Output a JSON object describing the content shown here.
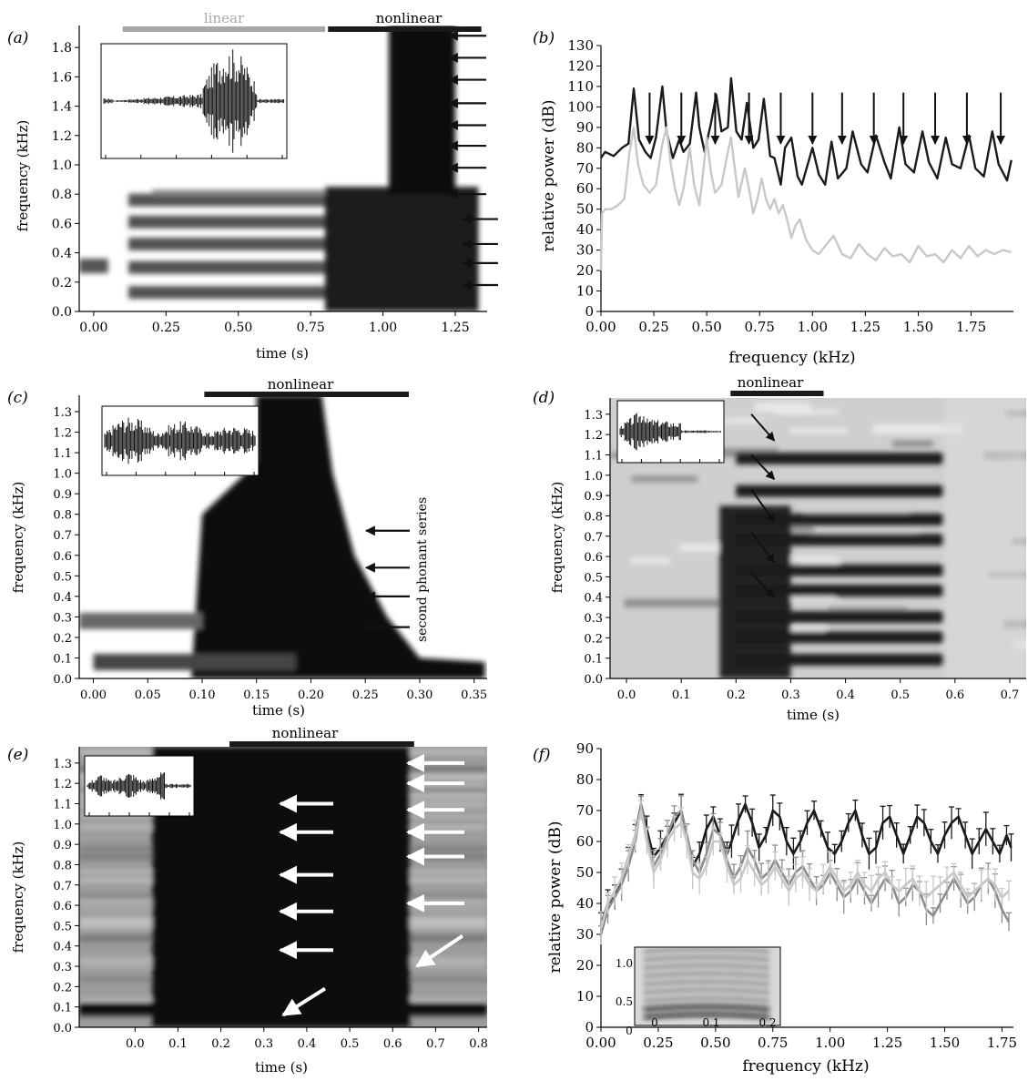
{
  "panels": {
    "a": {
      "letter": "(a)",
      "xlabel": "time (s)",
      "ylabel": "frequency (kHz)",
      "bars": [
        {
          "label": "linear",
          "color": "#a8a8a8"
        },
        {
          "label": "nonlinear",
          "color": "#1a1a1a"
        }
      ]
    },
    "b": {
      "letter": "(b)",
      "xlabel": "frequency (kHz)",
      "ylabel": "relative power (dB)"
    },
    "c": {
      "letter": "(c)",
      "xlabel": "time (s)",
      "ylabel": "frequency (kHz)",
      "bars": [
        {
          "label": "nonlinear",
          "color": "#1a1a1a"
        }
      ],
      "annotation": "second phonant series"
    },
    "d": {
      "letter": "(d)",
      "xlabel": "time (s)",
      "ylabel": "frequency (kHz)",
      "bars": [
        {
          "label": "nonlinear",
          "color": "#1a1a1a"
        }
      ]
    },
    "e": {
      "letter": "(e)",
      "xlabel": "time (s)",
      "ylabel": "frequency (kHz)",
      "bars": [
        {
          "label": "nonlinear",
          "color": "#1a1a1a"
        }
      ]
    },
    "f": {
      "letter": "(f)",
      "xlabel": "frequency (kHz)",
      "ylabel": "relative power (dB)"
    }
  },
  "chart_data": [
    {
      "panel": "a",
      "type": "heatmap",
      "xlabel": "time (s)",
      "ylabel": "frequency (kHz)",
      "xticks": [
        "0.00",
        "0.25",
        "0.50",
        "0.75",
        "1.00",
        "1.25"
      ],
      "xlim": [
        -0.05,
        1.36
      ],
      "yticks": [
        "0.0",
        "0.2",
        "0.4",
        "0.6",
        "0.8",
        "1.0",
        "1.2",
        "1.4",
        "1.6",
        "1.8"
      ],
      "ylim": [
        0,
        1.95
      ],
      "segments": [
        {
          "label": "linear",
          "start": 0.1,
          "end": 0.8
        },
        {
          "label": "nonlinear",
          "start": 0.81,
          "end": 1.34
        }
      ],
      "harmonics_linear": [
        0.13,
        0.3,
        0.46,
        0.61,
        0.76
      ],
      "arrows_y": [
        1.88,
        1.73,
        1.58,
        1.42,
        1.27,
        1.13,
        0.98,
        0.8,
        0.63,
        0.46,
        0.33,
        0.18
      ],
      "inset": {
        "type": "waveform"
      }
    },
    {
      "panel": "b",
      "type": "line",
      "xlabel": "frequency (kHz)",
      "ylabel": "relative power (dB)",
      "xticks": [
        "0.00",
        "0.25",
        "0.50",
        "0.75",
        "1.00",
        "1.25",
        "1.50",
        "1.75"
      ],
      "xlim": [
        0,
        1.95
      ],
      "yticks": [
        "0",
        "10",
        "20",
        "30",
        "40",
        "50",
        "60",
        "70",
        "80",
        "90",
        "100",
        "110",
        "120",
        "130"
      ],
      "ylim": [
        0,
        130
      ],
      "series": [
        {
          "color": "#1a1a1a",
          "x": [
            0,
            0.02,
            0.06,
            0.1,
            0.13,
            0.155,
            0.18,
            0.21,
            0.235,
            0.26,
            0.29,
            0.31,
            0.34,
            0.37,
            0.39,
            0.42,
            0.45,
            0.465,
            0.49,
            0.52,
            0.545,
            0.57,
            0.6,
            0.615,
            0.64,
            0.665,
            0.69,
            0.72,
            0.745,
            0.77,
            0.8,
            0.82,
            0.85,
            0.87,
            0.9,
            0.93,
            0.95,
            1.0,
            1.03,
            1.06,
            1.09,
            1.12,
            1.16,
            1.19,
            1.23,
            1.26,
            1.3,
            1.34,
            1.37,
            1.41,
            1.44,
            1.48,
            1.52,
            1.55,
            1.59,
            1.63,
            1.66,
            1.7,
            1.74,
            1.77,
            1.81,
            1.85,
            1.88,
            1.92,
            1.94
          ],
          "y": [
            75,
            78,
            76,
            80,
            82,
            109,
            84,
            78,
            75,
            85,
            110,
            88,
            75,
            84,
            78,
            82,
            107,
            90,
            78,
            92,
            106,
            88,
            90,
            114,
            88,
            84,
            102,
            80,
            84,
            104,
            76,
            75,
            62,
            80,
            85,
            66,
            62,
            80,
            67,
            62,
            83,
            65,
            70,
            88,
            72,
            68,
            86,
            73,
            65,
            90,
            72,
            68,
            88,
            73,
            65,
            85,
            72,
            70,
            86,
            70,
            66,
            88,
            72,
            64,
            74
          ]
        },
        {
          "color": "#c8c8c8",
          "x": [
            0,
            0.005,
            0.02,
            0.05,
            0.08,
            0.11,
            0.135,
            0.155,
            0.175,
            0.2,
            0.23,
            0.26,
            0.29,
            0.31,
            0.33,
            0.35,
            0.37,
            0.39,
            0.42,
            0.44,
            0.465,
            0.48,
            0.5,
            0.52,
            0.54,
            0.57,
            0.6,
            0.615,
            0.63,
            0.65,
            0.68,
            0.7,
            0.72,
            0.74,
            0.76,
            0.78,
            0.8,
            0.82,
            0.84,
            0.86,
            0.88,
            0.9,
            0.92,
            0.94,
            0.97,
            1.0,
            1.03,
            1.06,
            1.1,
            1.14,
            1.18,
            1.22,
            1.26,
            1.3,
            1.34,
            1.38,
            1.42,
            1.46,
            1.5,
            1.54,
            1.58,
            1.62,
            1.66,
            1.7,
            1.74,
            1.78,
            1.82,
            1.86,
            1.9,
            1.94
          ],
          "y": [
            20,
            48,
            50,
            50,
            52,
            55,
            78,
            90,
            72,
            62,
            58,
            62,
            82,
            90,
            72,
            60,
            52,
            60,
            80,
            62,
            52,
            65,
            85,
            68,
            58,
            62,
            78,
            85,
            72,
            56,
            70,
            60,
            48,
            55,
            65,
            55,
            50,
            55,
            48,
            52,
            45,
            36,
            42,
            45,
            35,
            30,
            28,
            32,
            37,
            28,
            26,
            33,
            28,
            25,
            31,
            27,
            28,
            24,
            32,
            27,
            28,
            24,
            30,
            26,
            32,
            27,
            30,
            28,
            30,
            29
          ]
        }
      ],
      "arrows_x": [
        0.23,
        0.38,
        0.54,
        0.7,
        0.85,
        1.0,
        1.14,
        1.29,
        1.43,
        1.58,
        1.73,
        1.89
      ]
    },
    {
      "panel": "c",
      "type": "heatmap",
      "xlabel": "time (s)",
      "ylabel": "frequency (kHz)",
      "xticks": [
        "0.00",
        "0.05",
        "0.10",
        "0.15",
        "0.20",
        "0.25",
        "0.30",
        "0.35"
      ],
      "xlim": [
        -0.013,
        0.362
      ],
      "yticks": [
        "0.0",
        "0.1",
        "0.2",
        "0.3",
        "0.4",
        "0.5",
        "0.6",
        "0.7",
        "0.8",
        "0.9",
        "1.0",
        "1.1",
        "1.2",
        "1.3"
      ],
      "ylim": [
        0,
        1.38
      ],
      "segments": [
        {
          "label": "nonlinear",
          "start": 0.102,
          "end": 0.29
        }
      ],
      "arrows_y": [
        0.72,
        0.54,
        0.4,
        0.25
      ],
      "annotation": "second phonant series",
      "inset": {
        "type": "waveform"
      }
    },
    {
      "panel": "d",
      "type": "heatmap",
      "xlabel": "time (s)",
      "ylabel": "frequency (kHz)",
      "xticks": [
        "0.0",
        "0.1",
        "0.2",
        "0.3",
        "0.4",
        "0.5",
        "0.6",
        "0.7"
      ],
      "xlim": [
        -0.03,
        0.73
      ],
      "yticks": [
        "0.0",
        "0.1",
        "0.2",
        "0.3",
        "0.4",
        "0.5",
        "0.6",
        "0.7",
        "0.8",
        "0.9",
        "1.0",
        "1.1",
        "1.2",
        "1.3"
      ],
      "ylim": [
        0,
        1.38
      ],
      "segments": [
        {
          "label": "nonlinear",
          "start": 0.19,
          "end": 0.36
        }
      ],
      "harmonics": [
        0.09,
        0.2,
        0.3,
        0.43,
        0.53,
        0.68,
        0.78,
        0.92,
        1.08
      ],
      "inset": {
        "type": "waveform"
      }
    },
    {
      "panel": "e",
      "type": "heatmap",
      "xlabel": "time (s)",
      "ylabel": "frequency (kHz)",
      "xticks": [
        "0.0",
        "0.1",
        "0.2",
        "0.3",
        "0.4",
        "0.5",
        "0.6",
        "0.7",
        "0.8"
      ],
      "xlim": [
        -0.13,
        0.82
      ],
      "yticks": [
        "0.0",
        "0.1",
        "0.2",
        "0.3",
        "0.4",
        "0.5",
        "0.6",
        "0.7",
        "0.8",
        "0.9",
        "1.0",
        "1.1",
        "1.2",
        "1.3"
      ],
      "ylim": [
        0,
        1.38
      ],
      "segments": [
        {
          "label": "nonlinear",
          "start": 0.22,
          "end": 0.65
        }
      ],
      "arrows_left": [
        1.1,
        0.96,
        0.75,
        0.57,
        0.38,
        0.1
      ],
      "arrows_right": [
        1.3,
        1.2,
        1.07,
        0.96,
        0.84,
        0.61,
        0.35
      ],
      "inset": {
        "type": "waveform"
      }
    },
    {
      "panel": "f",
      "type": "line",
      "xlabel": "frequency (kHz)",
      "ylabel": "relative power (dB)",
      "xticks": [
        "0.00",
        "0.25",
        "0.50",
        "0.75",
        "1.00",
        "1.25",
        "1.50",
        "1.75"
      ],
      "xlim": [
        0,
        1.8
      ],
      "yticks": [
        "0",
        "10",
        "20",
        "30",
        "40",
        "50",
        "60",
        "70",
        "80",
        "90"
      ],
      "ylim": [
        0,
        90
      ],
      "series": [
        {
          "color": "#1a1a1a",
          "x": [
            0,
            0.03,
            0.06,
            0.09,
            0.12,
            0.15,
            0.175,
            0.2,
            0.23,
            0.26,
            0.29,
            0.32,
            0.35,
            0.375,
            0.4,
            0.43,
            0.46,
            0.49,
            0.52,
            0.55,
            0.57,
            0.6,
            0.63,
            0.66,
            0.69,
            0.72,
            0.75,
            0.78,
            0.81,
            0.84,
            0.87,
            0.9,
            0.93,
            0.96,
            0.99,
            1.02,
            1.05,
            1.08,
            1.11,
            1.14,
            1.17,
            1.2,
            1.23,
            1.26,
            1.29,
            1.32,
            1.35,
            1.38,
            1.41,
            1.44,
            1.47,
            1.5,
            1.53,
            1.56,
            1.59,
            1.62,
            1.65,
            1.68,
            1.71,
            1.74,
            1.77,
            1.79
          ],
          "y": [
            33,
            40,
            42,
            48,
            55,
            62,
            72,
            64,
            55,
            58,
            62,
            66,
            70,
            62,
            52,
            56,
            64,
            68,
            62,
            56,
            60,
            67,
            72,
            66,
            58,
            62,
            70,
            68,
            60,
            56,
            60,
            66,
            70,
            64,
            58,
            56,
            60,
            66,
            70,
            62,
            56,
            58,
            66,
            68,
            62,
            56,
            62,
            68,
            66,
            60,
            56,
            62,
            66,
            68,
            62,
            56,
            60,
            64,
            60,
            56,
            62,
            58
          ]
        },
        {
          "color": "#8c8c8c",
          "x": [
            0,
            0.03,
            0.06,
            0.09,
            0.12,
            0.15,
            0.175,
            0.2,
            0.23,
            0.26,
            0.29,
            0.32,
            0.35,
            0.375,
            0.4,
            0.43,
            0.46,
            0.49,
            0.52,
            0.55,
            0.58,
            0.61,
            0.64,
            0.67,
            0.7,
            0.73,
            0.76,
            0.79,
            0.82,
            0.85,
            0.88,
            0.91,
            0.94,
            0.97,
            1.0,
            1.03,
            1.06,
            1.09,
            1.12,
            1.15,
            1.18,
            1.21,
            1.24,
            1.27,
            1.3,
            1.33,
            1.36,
            1.39,
            1.42,
            1.45,
            1.48,
            1.51,
            1.54,
            1.57,
            1.6,
            1.63,
            1.66,
            1.69,
            1.72,
            1.75,
            1.78
          ],
          "y": [
            30,
            38,
            42,
            46,
            52,
            60,
            72,
            62,
            52,
            56,
            62,
            68,
            70,
            62,
            54,
            50,
            56,
            64,
            62,
            54,
            48,
            52,
            58,
            54,
            48,
            50,
            54,
            50,
            46,
            50,
            52,
            48,
            44,
            46,
            50,
            46,
            42,
            44,
            48,
            44,
            40,
            44,
            48,
            46,
            40,
            42,
            46,
            44,
            38,
            36,
            40,
            44,
            48,
            44,
            40,
            42,
            46,
            48,
            44,
            38,
            34
          ]
        },
        {
          "color": "#c8c8c8",
          "x": [
            0,
            0.03,
            0.06,
            0.09,
            0.12,
            0.15,
            0.175,
            0.2,
            0.23,
            0.26,
            0.29,
            0.32,
            0.35,
            0.375,
            0.4,
            0.43,
            0.46,
            0.49,
            0.52,
            0.55,
            0.58,
            0.61,
            0.64,
            0.67,
            0.7,
            0.73,
            0.76,
            0.79,
            0.82,
            0.85,
            0.88,
            0.91,
            0.94,
            0.97,
            1.0,
            1.03,
            1.06,
            1.09,
            1.12,
            1.15,
            1.18,
            1.21,
            1.24,
            1.27,
            1.3,
            1.33,
            1.36,
            1.39,
            1.42,
            1.45,
            1.48,
            1.51,
            1.54,
            1.57,
            1.6,
            1.63,
            1.66,
            1.69,
            1.72,
            1.75,
            1.78
          ],
          "y": [
            32,
            40,
            44,
            48,
            55,
            62,
            70,
            60,
            50,
            54,
            60,
            64,
            66,
            60,
            50,
            48,
            52,
            60,
            60,
            52,
            46,
            48,
            54,
            50,
            46,
            48,
            52,
            48,
            44,
            48,
            50,
            46,
            44,
            48,
            52,
            48,
            44,
            46,
            50,
            46,
            44,
            48,
            50,
            46,
            44,
            46,
            48,
            44,
            42,
            44,
            46,
            48,
            50,
            46,
            42,
            44,
            46,
            48,
            46,
            42,
            44
          ]
        }
      ],
      "inset": {
        "type": "spectrogram",
        "xticks": [
          "0",
          "0.1",
          "0.2"
        ],
        "yticks": [
          "0.5",
          "1.0"
        ]
      }
    }
  ]
}
